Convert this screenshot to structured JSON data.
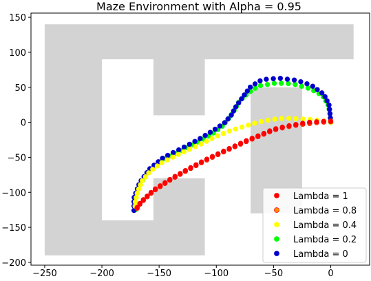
{
  "chart_data": {
    "type": "scatter",
    "title": "Maze Environment with Alpha = 0.95",
    "xlabel": "",
    "ylabel": "",
    "xlim": [
      -262,
      34
    ],
    "ylim": [
      -204,
      156
    ],
    "xticks": [
      -250,
      -200,
      -150,
      -100,
      -50,
      0
    ],
    "yticks": [
      150,
      100,
      50,
      0,
      -50,
      -100,
      -150,
      -200
    ],
    "xtick_labels": [
      "−250",
      "−200",
      "−150",
      "−100",
      "−50",
      "0"
    ],
    "ytick_labels": [
      "150",
      "100",
      "50",
      "0",
      "−50",
      "−100",
      "−150",
      "−200"
    ],
    "grid": false,
    "legend_position": "lower-right",
    "maze_color": "#d3d3d3",
    "maze_polygon": [
      [
        -250,
        140
      ],
      [
        20,
        140
      ],
      [
        20,
        90
      ],
      [
        -110,
        90
      ],
      [
        -110,
        10
      ],
      [
        -155,
        10
      ],
      [
        -155,
        90
      ],
      [
        -200,
        90
      ],
      [
        -200,
        -140
      ],
      [
        -155,
        -140
      ],
      [
        -155,
        -80
      ],
      [
        -110,
        -80
      ],
      [
        -110,
        -190
      ],
      [
        -250,
        -190
      ]
    ],
    "maze_rects": [
      {
        "x0": -70,
        "x1": -25,
        "y0": -130,
        "y1": 50
      }
    ],
    "series": [
      {
        "name": "Lambda = 0.2",
        "color": "#00ff00",
        "path": [
          [
            0,
            0
          ],
          [
            -0.7,
            12
          ],
          [
            -2,
            24
          ],
          [
            -7,
            38
          ],
          [
            -18,
            48
          ],
          [
            -33,
            55
          ],
          [
            -48,
            56
          ],
          [
            -63,
            52
          ],
          [
            -72,
            42
          ],
          [
            -80,
            30
          ],
          [
            -84,
            18
          ],
          [
            -88,
            8
          ],
          [
            -95,
            -6
          ],
          [
            -105,
            -18
          ],
          [
            -117,
            -29
          ],
          [
            -132,
            -42
          ],
          [
            -148,
            -55
          ],
          [
            -160,
            -72
          ],
          [
            -168,
            -92
          ],
          [
            -172,
            -114
          ],
          [
            -171,
            -126
          ]
        ]
      },
      {
        "name": "Lambda = 0",
        "color": "#0000cc",
        "path": [
          [
            0,
            0
          ],
          [
            -0.6,
            12
          ],
          [
            -1.5,
            25
          ],
          [
            -6,
            40
          ],
          [
            -17,
            53
          ],
          [
            -30,
            60
          ],
          [
            -45,
            63
          ],
          [
            -60,
            61
          ],
          [
            -70,
            51
          ],
          [
            -76,
            38
          ],
          [
            -83,
            22
          ],
          [
            -87,
            10
          ],
          [
            -93,
            -1
          ],
          [
            -103,
            -12
          ],
          [
            -115,
            -24
          ],
          [
            -130,
            -37
          ],
          [
            -146,
            -50
          ],
          [
            -158,
            -66
          ],
          [
            -167,
            -86
          ],
          [
            -172,
            -108
          ],
          [
            -172,
            -129
          ]
        ]
      },
      {
        "name": "Lambda = 0.4",
        "color": "#ffff00",
        "path": [
          [
            0,
            0
          ],
          [
            -6,
            2
          ],
          [
            -16,
            4
          ],
          [
            -28,
            5
          ],
          [
            -40,
            6
          ],
          [
            -52,
            4
          ],
          [
            -64,
            0
          ],
          [
            -76,
            -6
          ],
          [
            -88,
            -12
          ],
          [
            -100,
            -20
          ],
          [
            -112,
            -30
          ],
          [
            -124,
            -39
          ],
          [
            -136,
            -48
          ],
          [
            -148,
            -58
          ],
          [
            -158,
            -70
          ],
          [
            -165,
            -84
          ],
          [
            -169,
            -100
          ],
          [
            -171,
            -115
          ],
          [
            -171,
            -124
          ]
        ]
      },
      {
        "name": "Lambda = 0.8",
        "color": "#ff8c00",
        "path": [
          [
            0,
            1
          ],
          [
            -10,
            0
          ],
          [
            -20,
            -2
          ],
          [
            -30,
            -4
          ],
          [
            -40,
            -7
          ],
          [
            -50,
            -11
          ],
          [
            -60,
            -18
          ],
          [
            -72,
            -26
          ],
          [
            -84,
            -35
          ],
          [
            -96,
            -44
          ],
          [
            -110,
            -55
          ],
          [
            -125,
            -68
          ],
          [
            -140,
            -82
          ],
          [
            -155,
            -98
          ],
          [
            -166,
            -115
          ],
          [
            -171,
            -127
          ]
        ]
      },
      {
        "name": "Lambda = 1",
        "color": "#ff0000",
        "path": [
          [
            0,
            2
          ],
          [
            -10,
            1
          ],
          [
            -20,
            0
          ],
          [
            -30,
            -3
          ],
          [
            -40,
            -6
          ],
          [
            -50,
            -10
          ],
          [
            -60,
            -17
          ],
          [
            -72,
            -25
          ],
          [
            -84,
            -34
          ],
          [
            -96,
            -43
          ],
          [
            -110,
            -54
          ],
          [
            -125,
            -67
          ],
          [
            -140,
            -81
          ],
          [
            -155,
            -97
          ],
          [
            -166,
            -114
          ],
          [
            -171,
            -126
          ]
        ]
      }
    ],
    "legend": [
      {
        "label": "Lambda = 1",
        "color": "#ff0000"
      },
      {
        "label": "Lambda = 0.8",
        "color": "#ff8c00"
      },
      {
        "label": "Lambda = 0.4",
        "color": "#ffff00"
      },
      {
        "label": "Lambda = 0.2",
        "color": "#00ff00"
      },
      {
        "label": "Lambda = 0",
        "color": "#0000cc"
      }
    ]
  }
}
